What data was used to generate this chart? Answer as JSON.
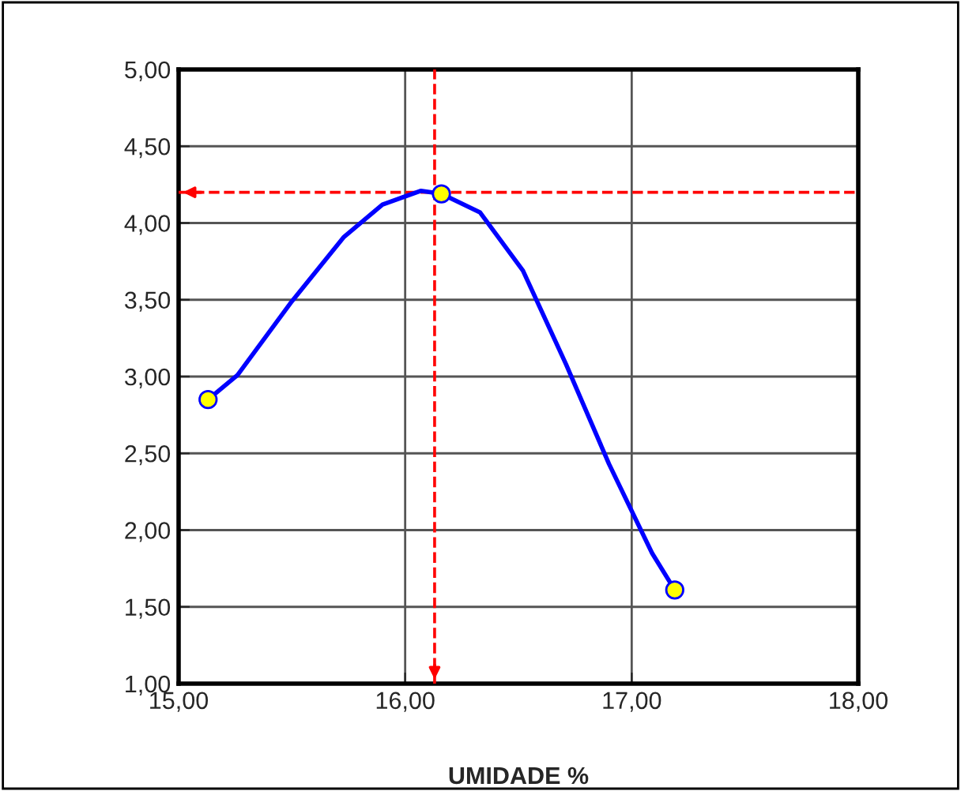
{
  "chart_data": {
    "type": "line",
    "xlabel": "UMIDADE %",
    "xlim": [
      15,
      18
    ],
    "xticks": [
      {
        "value": 15,
        "label": "15,00"
      },
      {
        "value": 16,
        "label": "16,00"
      },
      {
        "value": 17,
        "label": "17,00"
      },
      {
        "value": 18,
        "label": "18,00"
      }
    ],
    "ylim": [
      1,
      5
    ],
    "yticks": [
      {
        "value": 1,
        "label": "1,00"
      },
      {
        "value": 1.5,
        "label": "1,50"
      },
      {
        "value": 2,
        "label": "2,00"
      },
      {
        "value": 2.5,
        "label": "2,50"
      },
      {
        "value": 3,
        "label": "3,00"
      },
      {
        "value": 3.5,
        "label": "3,50"
      },
      {
        "value": 4,
        "label": "4,00"
      },
      {
        "value": 4.5,
        "label": "4,50"
      },
      {
        "value": 5,
        "label": "5,00"
      }
    ],
    "grid": true,
    "series": [
      {
        "color": "#0000ff",
        "marker": "none",
        "line_style": "solid",
        "x": [
          15.13,
          15.26,
          15.5,
          15.73,
          15.9,
          16.07,
          16.16,
          16.33,
          16.52,
          16.71,
          16.9,
          17.09,
          17.19
        ],
        "values": [
          2.85,
          3.01,
          3.49,
          3.91,
          4.12,
          4.21,
          4.19,
          4.07,
          3.69,
          3.08,
          2.43,
          1.85,
          1.61
        ]
      },
      {
        "type": "scatter",
        "color": "#ffff00",
        "marker": "circle",
        "x": [
          15.13,
          16.16,
          17.19
        ],
        "values": [
          2.85,
          4.19,
          1.61
        ]
      }
    ],
    "ref_lines": [
      {
        "axis": "y",
        "value": 4.2,
        "color": "#ff0000",
        "line_style": "dashed"
      },
      {
        "axis": "x",
        "value": 16.13,
        "color": "#ff0000",
        "line_style": "dashed"
      }
    ]
  }
}
